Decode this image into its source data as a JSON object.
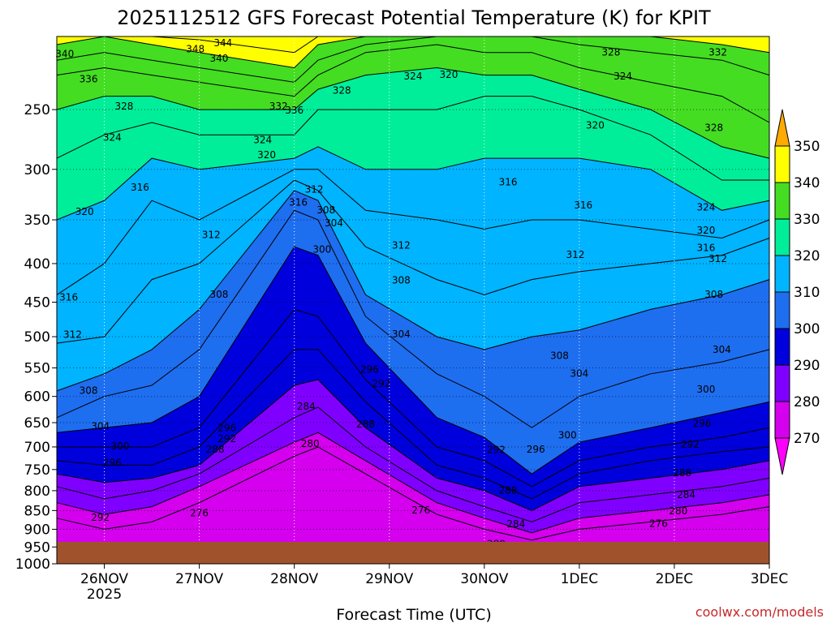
{
  "chart_data": {
    "type": "heatmap",
    "title": "2025112512 GFS Forecast Potential Temperature (K) for KPIT",
    "xlabel": "Forecast Time (UTC)",
    "ylabel": "",
    "credit": "coolwx.com/models",
    "x_ticks": [
      {
        "label": "26NOV",
        "sub": "2025",
        "hour": 12
      },
      {
        "label": "27NOV",
        "sub": "",
        "hour": 36
      },
      {
        "label": "28NOV",
        "sub": "",
        "hour": 60
      },
      {
        "label": "29NOV",
        "sub": "",
        "hour": 84
      },
      {
        "label": "30NOV",
        "sub": "",
        "hour": 108
      },
      {
        "label": "1DEC",
        "sub": "",
        "hour": 132
      },
      {
        "label": "2DEC",
        "sub": "",
        "hour": 156
      },
      {
        "label": "3DEC",
        "sub": "",
        "hour": 180
      }
    ],
    "xlim_hours": [
      0,
      180
    ],
    "y_ticks": [
      250,
      300,
      350,
      400,
      450,
      500,
      550,
      600,
      650,
      700,
      750,
      800,
      850,
      900,
      950,
      1000
    ],
    "ylim_hPa": [
      200,
      1000
    ],
    "y_scale": "log",
    "ground_color": "#a0522d",
    "grid": true,
    "colorbar": {
      "levels": [
        270,
        280,
        290,
        300,
        310,
        320,
        330,
        340,
        350
      ],
      "colors": [
        "#ff00ff",
        "#d400ee",
        "#8000ff",
        "#0000dd",
        "#1e6ef0",
        "#00b4ff",
        "#00ee99",
        "#44dd22",
        "#ffff00",
        "#ffaa00"
      ]
    },
    "contour_interval": 4,
    "isentrope_profiles": [
      {
        "theta": 276,
        "hPa": [
          870,
          900,
          880,
          830,
          720,
          700,
          760,
          860,
          900,
          930,
          900,
          880,
          860,
          840
        ]
      },
      {
        "theta": 280,
        "hPa": [
          830,
          860,
          840,
          790,
          690,
          670,
          730,
          830,
          870,
          910,
          870,
          850,
          830,
          810
        ]
      },
      {
        "theta": 284,
        "hPa": [
          790,
          820,
          800,
          760,
          640,
          620,
          700,
          800,
          840,
          880,
          830,
          810,
          790,
          770
        ]
      },
      {
        "theta": 288,
        "hPa": [
          760,
          780,
          770,
          740,
          580,
          570,
          660,
          770,
          800,
          850,
          790,
          770,
          750,
          730
        ]
      },
      {
        "theta": 292,
        "hPa": [
          730,
          740,
          740,
          700,
          520,
          520,
          610,
          740,
          770,
          820,
          760,
          730,
          710,
          700
        ]
      },
      {
        "theta": 296,
        "hPa": [
          700,
          700,
          700,
          660,
          460,
          470,
          570,
          700,
          730,
          790,
          730,
          700,
          680,
          660
        ]
      },
      {
        "theta": 300,
        "hPa": [
          670,
          660,
          650,
          600,
          380,
          390,
          510,
          640,
          680,
          760,
          690,
          660,
          630,
          610
        ]
      },
      {
        "theta": 304,
        "hPa": [
          640,
          600,
          580,
          520,
          340,
          350,
          470,
          560,
          600,
          660,
          600,
          560,
          540,
          520
        ]
      },
      {
        "theta": 308,
        "hPa": [
          590,
          560,
          520,
          460,
          320,
          330,
          440,
          500,
          520,
          500,
          490,
          460,
          440,
          420
        ]
      },
      {
        "theta": 312,
        "hPa": [
          510,
          500,
          420,
          400,
          310,
          320,
          380,
          420,
          440,
          420,
          410,
          400,
          390,
          370
        ]
      },
      {
        "theta": 316,
        "hPa": [
          440,
          400,
          330,
          350,
          300,
          300,
          340,
          350,
          360,
          350,
          350,
          360,
          370,
          350
        ]
      },
      {
        "theta": 320,
        "hPa": [
          350,
          330,
          290,
          300,
          290,
          280,
          300,
          300,
          290,
          290,
          290,
          300,
          340,
          330
        ]
      },
      {
        "theta": 324,
        "hPa": [
          290,
          270,
          260,
          270,
          270,
          250,
          250,
          250,
          240,
          240,
          250,
          270,
          310,
          310
        ]
      },
      {
        "theta": 328,
        "hPa": [
          250,
          240,
          240,
          250,
          250,
          235,
          225,
          220,
          225,
          225,
          235,
          250,
          280,
          290
        ]
      },
      {
        "theta": 332,
        "hPa": [
          225,
          220,
          225,
          230,
          240,
          225,
          210,
          205,
          210,
          210,
          220,
          230,
          240,
          260
        ]
      },
      {
        "theta": 336,
        "hPa": [
          215,
          210,
          215,
          220,
          230,
          215,
          205,
          200,
          200,
          200,
          205,
          210,
          215,
          225
        ]
      },
      {
        "theta": 340,
        "hPa": [
          205,
          200,
          205,
          210,
          220,
          205,
          200,
          200,
          200,
          200,
          200,
          200,
          205,
          210
        ]
      },
      {
        "theta": 344,
        "hPa": [
          200,
          200,
          200,
          202,
          210,
          200,
          200,
          200,
          200,
          200,
          200,
          200,
          200,
          200
        ]
      }
    ],
    "profile_hours": [
      0,
      12,
      24,
      36,
      60,
      66,
      78,
      96,
      108,
      120,
      132,
      150,
      168,
      180
    ],
    "contour_labels": [
      {
        "text": "340",
        "hour": 2,
        "hPa": 213
      },
      {
        "text": "336",
        "hour": 8,
        "hPa": 230
      },
      {
        "text": "348",
        "hour": 35,
        "hPa": 210
      },
      {
        "text": "344",
        "hour": 42,
        "hPa": 206
      },
      {
        "text": "340",
        "hour": 41,
        "hPa": 216
      },
      {
        "text": "332",
        "hour": 56,
        "hPa": 250
      },
      {
        "text": "336",
        "hour": 60,
        "hPa": 253
      },
      {
        "text": "328",
        "hour": 72,
        "hPa": 238
      },
      {
        "text": "324",
        "hour": 90,
        "hPa": 228
      },
      {
        "text": "320",
        "hour": 99,
        "hPa": 227
      },
      {
        "text": "328",
        "hour": 140,
        "hPa": 212
      },
      {
        "text": "332",
        "hour": 167,
        "hPa": 212
      },
      {
        "text": "324",
        "hour": 143,
        "hPa": 228
      },
      {
        "text": "320",
        "hour": 136,
        "hPa": 265
      },
      {
        "text": "328",
        "hour": 166,
        "hPa": 267
      },
      {
        "text": "328",
        "hour": 17,
        "hPa": 250
      },
      {
        "text": "324",
        "hour": 14,
        "hPa": 275
      },
      {
        "text": "324",
        "hour": 52,
        "hPa": 277
      },
      {
        "text": "320",
        "hour": 53,
        "hPa": 290
      },
      {
        "text": "316",
        "hour": 21,
        "hPa": 320
      },
      {
        "text": "316",
        "hour": 61,
        "hPa": 335
      },
      {
        "text": "312",
        "hour": 65,
        "hPa": 322
      },
      {
        "text": "308",
        "hour": 68,
        "hPa": 343
      },
      {
        "text": "304",
        "hour": 70,
        "hPa": 357
      },
      {
        "text": "300",
        "hour": 67,
        "hPa": 387
      },
      {
        "text": "316",
        "hour": 114,
        "hPa": 315
      },
      {
        "text": "316",
        "hour": 133,
        "hPa": 338
      },
      {
        "text": "324",
        "hour": 164,
        "hPa": 340
      },
      {
        "text": "320",
        "hour": 164,
        "hPa": 365
      },
      {
        "text": "316",
        "hour": 164,
        "hPa": 385
      },
      {
        "text": "312",
        "hour": 167,
        "hPa": 398
      },
      {
        "text": "312",
        "hour": 131,
        "hPa": 393
      },
      {
        "text": "312",
        "hour": 87,
        "hPa": 382
      },
      {
        "text": "320",
        "hour": 7,
        "hPa": 345
      },
      {
        "text": "312",
        "hour": 39,
        "hPa": 370
      },
      {
        "text": "308",
        "hour": 41,
        "hPa": 444
      },
      {
        "text": "308",
        "hour": 87,
        "hPa": 425
      },
      {
        "text": "308",
        "hour": 166,
        "hPa": 444
      },
      {
        "text": "316",
        "hour": 3,
        "hPa": 448
      },
      {
        "text": "312",
        "hour": 4,
        "hPa": 502
      },
      {
        "text": "304",
        "hour": 87,
        "hPa": 501
      },
      {
        "text": "308",
        "hour": 127,
        "hPa": 535
      },
      {
        "text": "304",
        "hour": 132,
        "hPa": 565
      },
      {
        "text": "304",
        "hour": 168,
        "hPa": 525
      },
      {
        "text": "300",
        "hour": 164,
        "hPa": 593
      },
      {
        "text": "308",
        "hour": 8,
        "hPa": 595
      },
      {
        "text": "304",
        "hour": 11,
        "hPa": 664
      },
      {
        "text": "300",
        "hour": 16,
        "hPa": 705
      },
      {
        "text": "296",
        "hour": 14,
        "hPa": 742
      },
      {
        "text": "292",
        "hour": 11,
        "hPa": 877
      },
      {
        "text": "296",
        "hour": 79,
        "hPa": 558
      },
      {
        "text": "292",
        "hour": 82,
        "hPa": 583
      },
      {
        "text": "288",
        "hour": 78,
        "hPa": 660
      },
      {
        "text": "284",
        "hour": 63,
        "hPa": 625
      },
      {
        "text": "280",
        "hour": 64,
        "hPa": 700
      },
      {
        "text": "288",
        "hour": 40,
        "hPa": 712
      },
      {
        "text": "292",
        "hour": 43,
        "hPa": 690
      },
      {
        "text": "296",
        "hour": 43,
        "hPa": 667
      },
      {
        "text": "276",
        "hour": 36,
        "hPa": 865
      },
      {
        "text": "276",
        "hour": 92,
        "hPa": 858
      },
      {
        "text": "300",
        "hour": 129,
        "hPa": 682
      },
      {
        "text": "296",
        "hour": 121,
        "hPa": 712
      },
      {
        "text": "292",
        "hour": 111,
        "hPa": 713
      },
      {
        "text": "296",
        "hour": 163,
        "hPa": 658
      },
      {
        "text": "292",
        "hour": 160,
        "hPa": 702
      },
      {
        "text": "288",
        "hour": 158,
        "hPa": 765
      },
      {
        "text": "284",
        "hour": 159,
        "hPa": 818
      },
      {
        "text": "280",
        "hour": 157,
        "hPa": 860
      },
      {
        "text": "276",
        "hour": 152,
        "hPa": 893
      },
      {
        "text": "288",
        "hour": 114,
        "hPa": 807
      },
      {
        "text": "284",
        "hour": 116,
        "hPa": 895
      },
      {
        "text": "280",
        "hour": 111,
        "hPa": 950
      }
    ]
  }
}
